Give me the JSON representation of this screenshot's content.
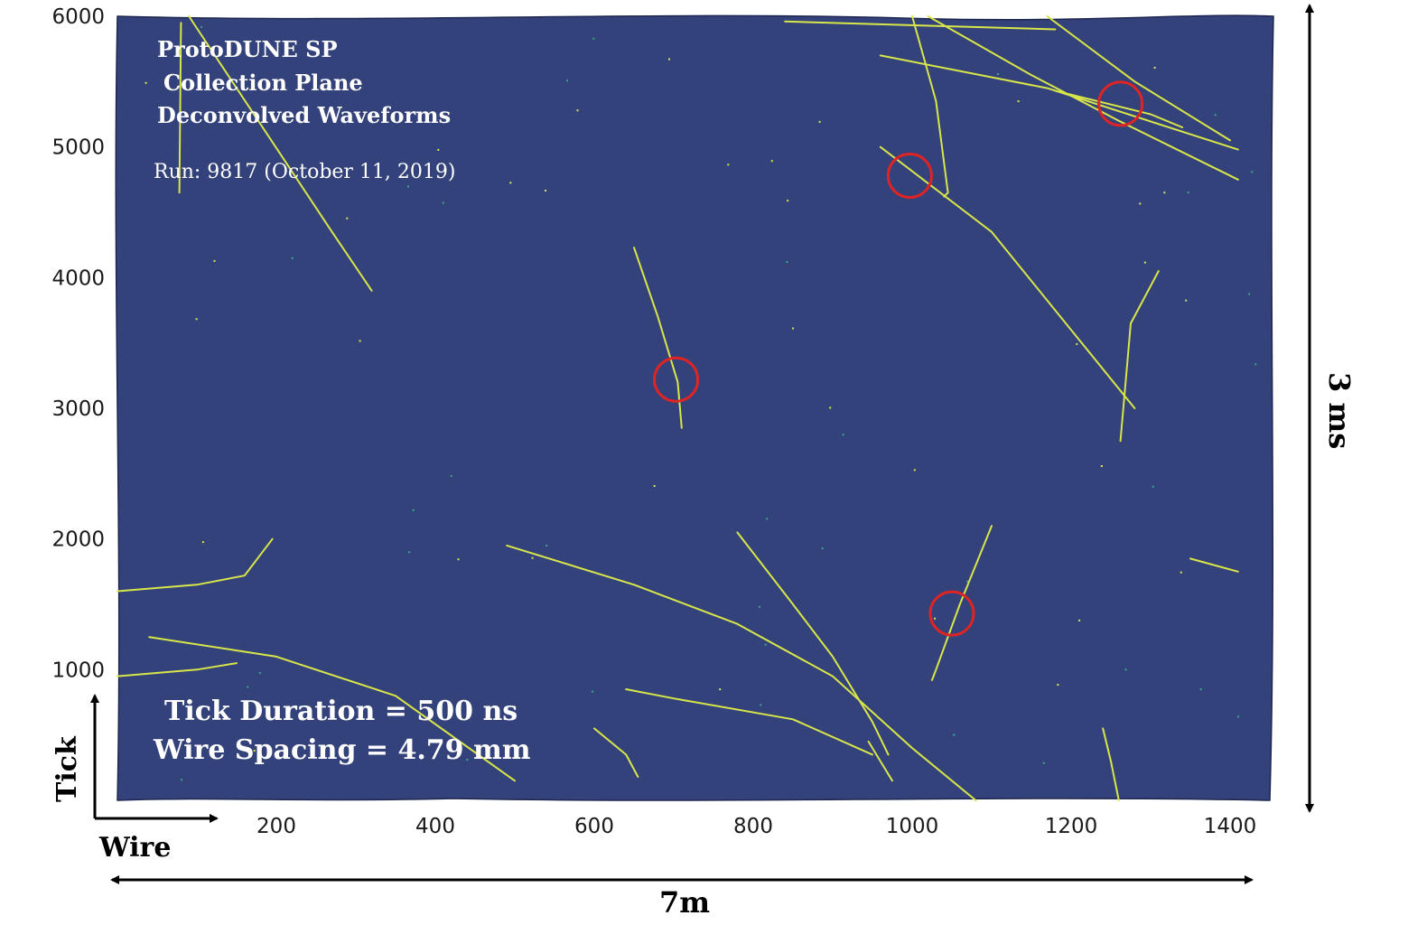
{
  "colors": {
    "background": "#33427a",
    "track": "#d9e64a",
    "track_faint": "#3aa88a",
    "circle": "#e02424",
    "text_on_image": "#ffffff",
    "axis_text": "#1a1a1a"
  },
  "overlay": {
    "title_line1": "ProtoDUNE SP",
    "title_line2": "Collection Plane",
    "title_line3": "Deconvolved Waveforms",
    "run": "Run: 9817 (October 11, 2019)",
    "tick_duration": "Tick Duration = 500 ns",
    "wire_spacing": "Wire Spacing = 4.79 mm"
  },
  "axes": {
    "y_ticks": [
      "6000",
      "5000",
      "4000",
      "3000",
      "2000",
      "1000"
    ],
    "y_tick_values": [
      6000,
      5000,
      4000,
      3000,
      2000,
      1000
    ],
    "x_ticks": [
      "200",
      "400",
      "600",
      "800",
      "1000",
      "1200",
      "1400"
    ],
    "x_tick_values": [
      200,
      400,
      600,
      800,
      1000,
      1200,
      1400
    ],
    "x_range": [
      0,
      1450
    ],
    "y_range": [
      0,
      6000
    ],
    "x_label": "Wire",
    "y_label": "Tick"
  },
  "dimensions": {
    "width_label": "7m",
    "height_label": "3 ms"
  },
  "highlights": [
    {
      "wire": 1262,
      "tick": 5330
    },
    {
      "wire": 997,
      "tick": 4780
    },
    {
      "wire": 703,
      "tick": 3220
    },
    {
      "wire": 1050,
      "tick": 1430
    }
  ],
  "tracks": [
    [
      [
        90,
        6000
      ],
      [
        270,
        4350
      ],
      [
        320,
        3900
      ]
    ],
    [
      [
        80,
        5950
      ],
      [
        78,
        4650
      ]
    ],
    [
      [
        840,
        5960
      ],
      [
        1180,
        5900
      ]
    ],
    [
      [
        1020,
        6000
      ],
      [
        1150,
        5550
      ],
      [
        1260,
        5200
      ],
      [
        1410,
        4750
      ]
    ],
    [
      [
        960,
        5700
      ],
      [
        1170,
        5450
      ],
      [
        1410,
        4980
      ]
    ],
    [
      [
        1000,
        6000
      ],
      [
        1030,
        5350
      ],
      [
        1045,
        4650
      ],
      [
        1040,
        4620
      ]
    ],
    [
      [
        960,
        5000
      ],
      [
        1100,
        4350
      ],
      [
        1200,
        3600
      ],
      [
        1280,
        3000
      ]
    ],
    [
      [
        1170,
        6000
      ],
      [
        1280,
        5500
      ],
      [
        1400,
        5050
      ]
    ],
    [
      [
        1180,
        5430
      ],
      [
        1300,
        5250
      ],
      [
        1340,
        5150
      ]
    ],
    [
      [
        1310,
        4050
      ],
      [
        1275,
        3650
      ],
      [
        1270,
        3300
      ],
      [
        1262,
        2750
      ]
    ],
    [
      [
        650,
        4230
      ],
      [
        680,
        3700
      ],
      [
        705,
        3200
      ],
      [
        710,
        2850
      ]
    ],
    [
      [
        0,
        1600
      ],
      [
        100,
        1650
      ],
      [
        160,
        1720
      ],
      [
        195,
        2000
      ]
    ],
    [
      [
        490,
        1950
      ],
      [
        650,
        1650
      ],
      [
        780,
        1350
      ],
      [
        900,
        950
      ],
      [
        1000,
        400
      ],
      [
        1080,
        0
      ]
    ],
    [
      [
        780,
        2050
      ],
      [
        850,
        1500
      ],
      [
        900,
        1100
      ],
      [
        950,
        600
      ],
      [
        970,
        350
      ]
    ],
    [
      [
        1100,
        2100
      ],
      [
        1060,
        1500
      ],
      [
        1030,
        1000
      ],
      [
        1025,
        920
      ]
    ],
    [
      [
        40,
        1250
      ],
      [
        200,
        1100
      ],
      [
        350,
        800
      ],
      [
        500,
        150
      ]
    ],
    [
      [
        0,
        950
      ],
      [
        100,
        1000
      ],
      [
        150,
        1050
      ]
    ],
    [
      [
        640,
        850
      ],
      [
        700,
        780
      ],
      [
        850,
        620
      ],
      [
        950,
        350
      ]
    ],
    [
      [
        1240,
        550
      ],
      [
        1250,
        300
      ],
      [
        1260,
        0
      ]
    ],
    [
      [
        600,
        550
      ],
      [
        640,
        350
      ],
      [
        655,
        180
      ]
    ],
    [
      [
        1350,
        1850
      ],
      [
        1380,
        1800
      ],
      [
        1410,
        1750
      ]
    ],
    [
      [
        945,
        450
      ],
      [
        960,
        300
      ],
      [
        975,
        150
      ]
    ]
  ]
}
